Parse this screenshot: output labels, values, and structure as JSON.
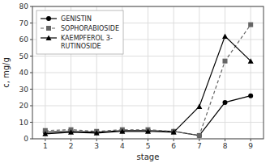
{
  "chart_data": {
    "type": "line",
    "xlabel": "stage",
    "ylabel": "c, mg/g",
    "x": [
      1,
      2,
      3,
      4,
      5,
      6,
      7,
      8,
      9
    ],
    "series": [
      {
        "name": "GENISTIN",
        "color": "#000000",
        "marker": "circle",
        "line_style": "solid",
        "values": [
          4.0,
          4.5,
          4.0,
          5.0,
          5.0,
          4.5,
          2.0,
          22.0,
          26.0
        ]
      },
      {
        "name": "SOPHORABIOSIDE",
        "color": "#666666",
        "marker": "square",
        "line_style": "dashed",
        "values": [
          5.0,
          5.5,
          4.5,
          5.5,
          5.5,
          4.5,
          2.0,
          47.0,
          69.0
        ]
      },
      {
        "name": "KAEMPFEROL 3-\nRUTINOSIDE",
        "color": "#000000",
        "marker": "triangle",
        "line_style": "solid",
        "values": [
          3.0,
          4.0,
          3.5,
          4.5,
          4.5,
          4.0,
          19.5,
          62.0,
          47.0
        ]
      }
    ],
    "xlim": [
      0.5,
      9.5
    ],
    "ylim": [
      0,
      80
    ],
    "xticks": [
      1,
      2,
      3,
      4,
      5,
      6,
      7,
      8,
      9
    ],
    "yticks": [
      0,
      10,
      20,
      30,
      40,
      50,
      60,
      70,
      80
    ],
    "grid": true,
    "legend": "upper left"
  }
}
